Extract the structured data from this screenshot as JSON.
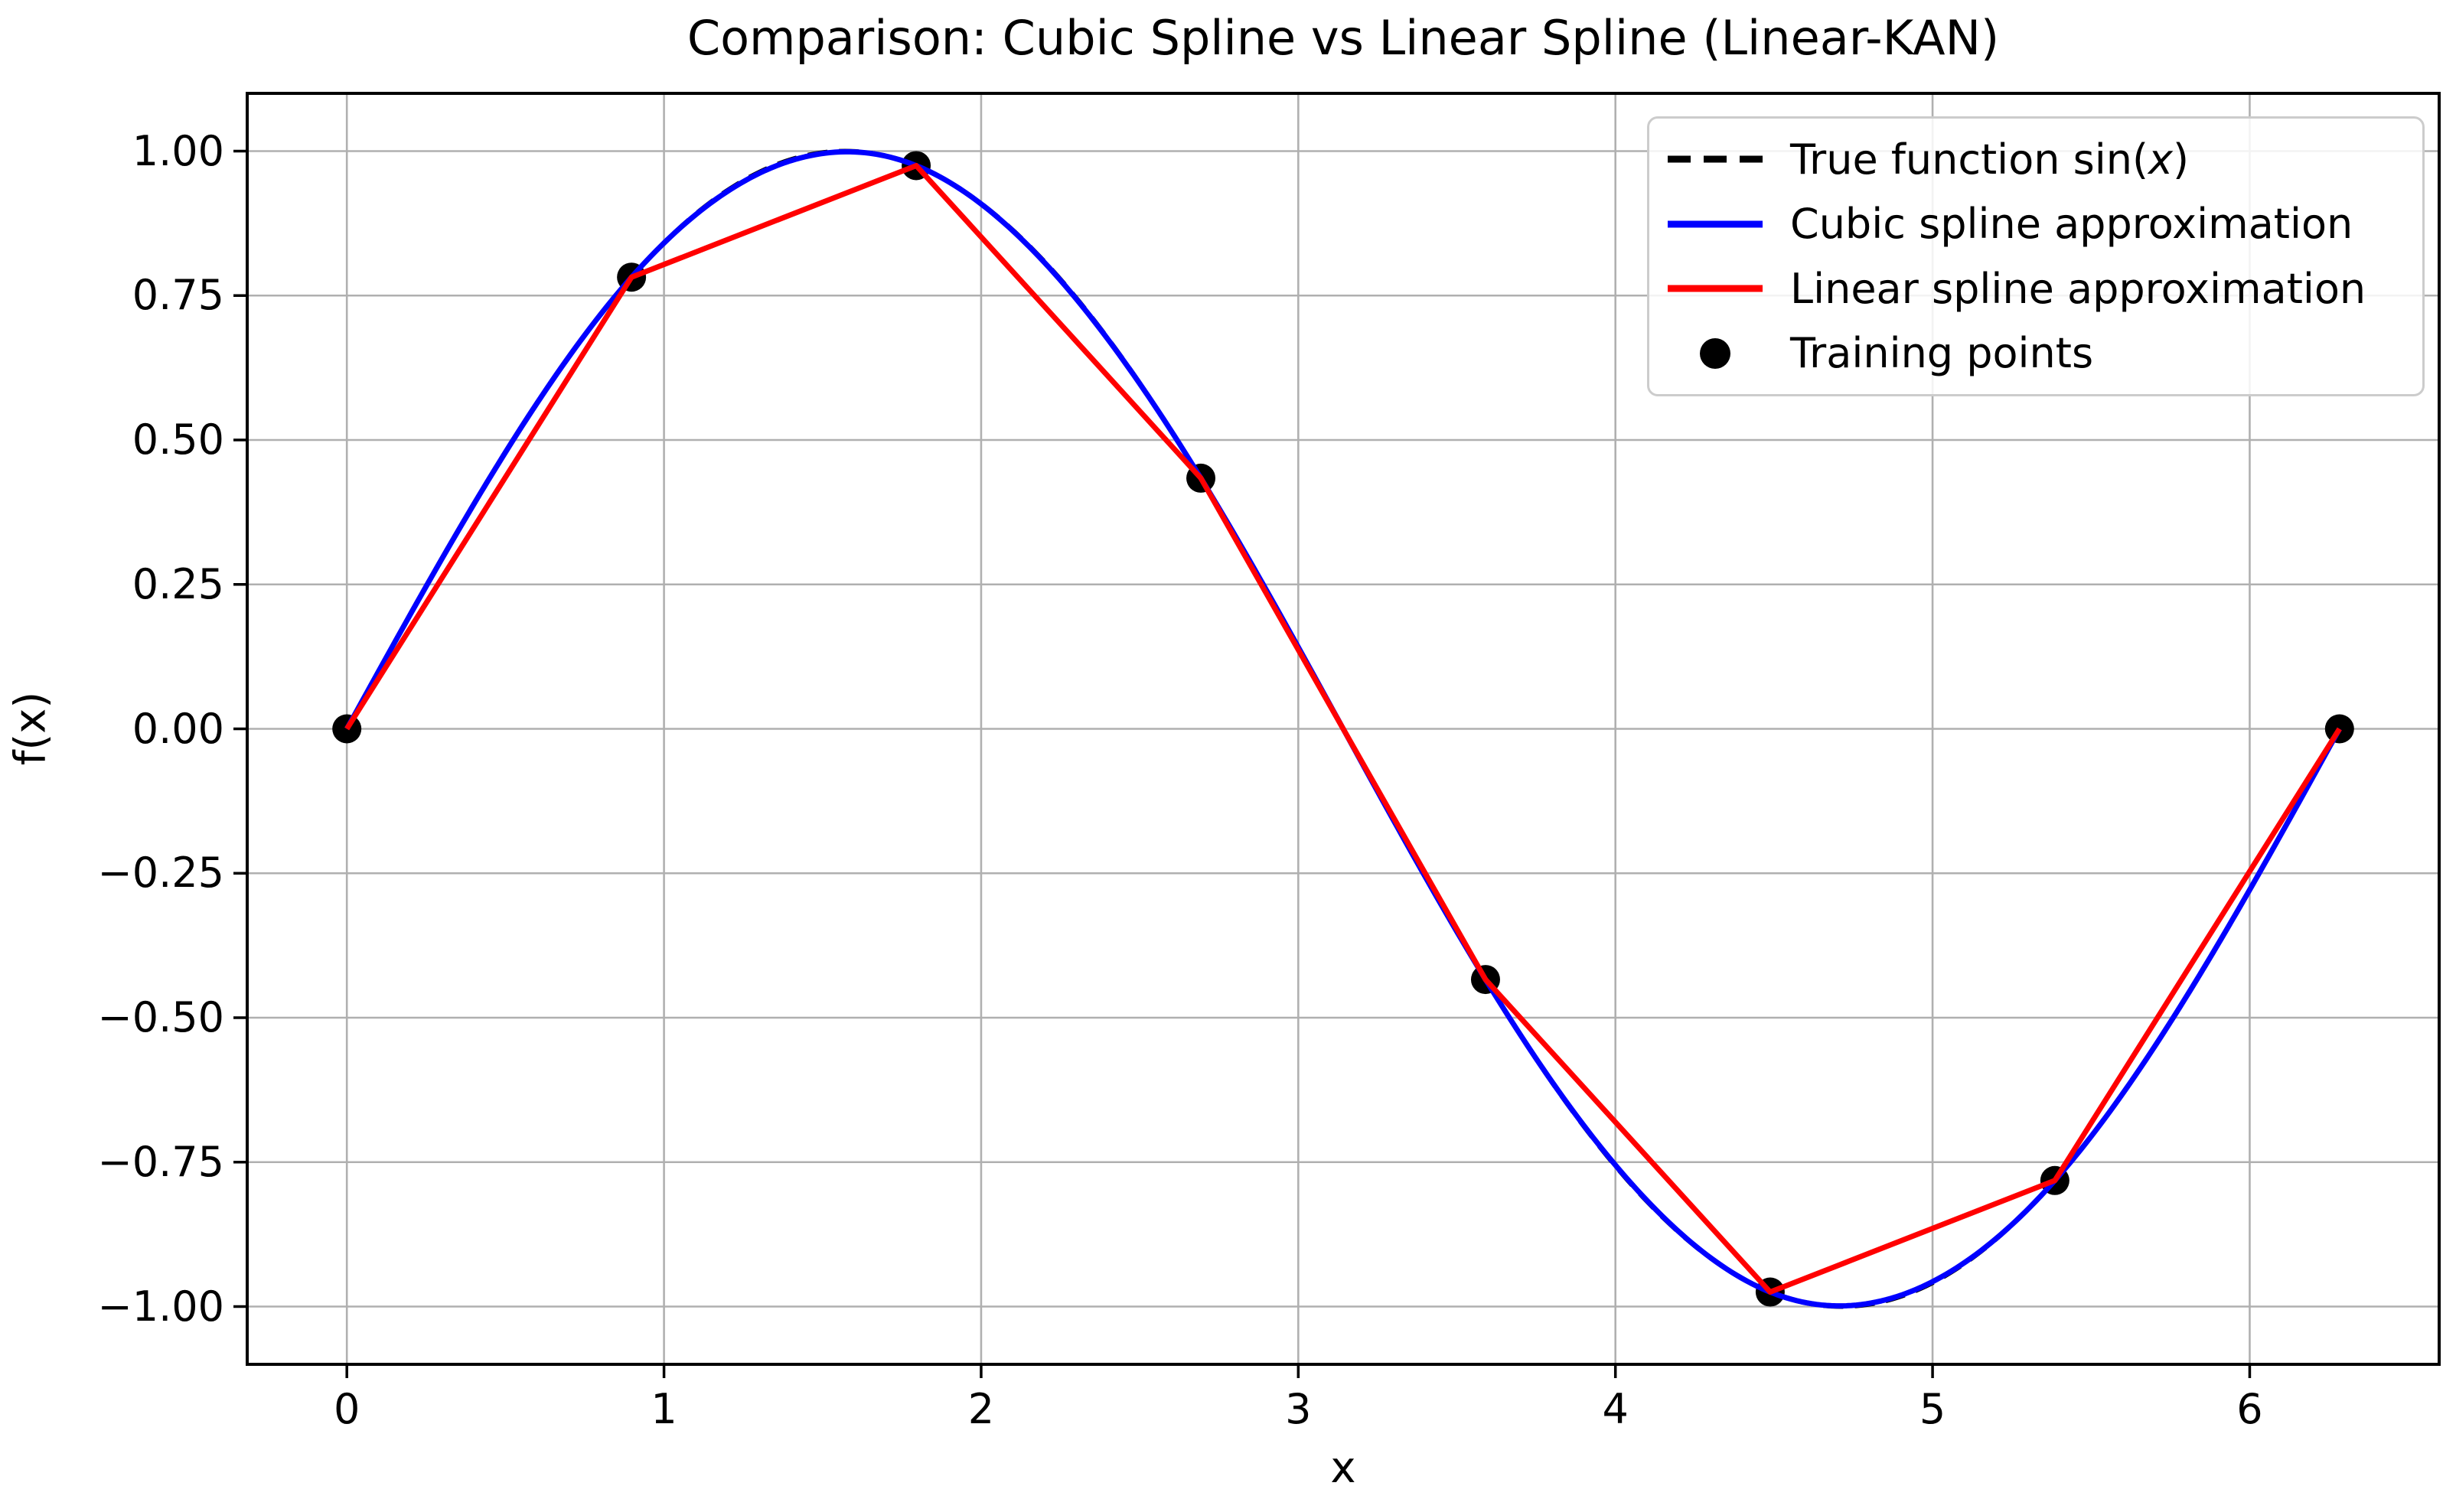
{
  "figure": {
    "title": "Comparison: Cubic Spline vs Linear Spline (Linear-KAN)",
    "background_color": "#ffffff"
  },
  "chart_data": {
    "type": "line",
    "title": "Comparison: Cubic Spline vs Linear Spline (Linear-KAN)",
    "xlabel": "x",
    "ylabel": "f(x)",
    "xlim": [
      -0.3142,
      6.5974
    ],
    "ylim": [
      -1.1,
      1.1
    ],
    "x_curve_range": [
      0,
      6.2832
    ],
    "grid": true,
    "grid_color": "#b0b0b0",
    "spine_color": "#000000",
    "x_ticks": {
      "values": [
        0,
        1,
        2,
        3,
        4,
        5,
        6
      ],
      "labels": [
        "0",
        "1",
        "2",
        "3",
        "4",
        "5",
        "6"
      ]
    },
    "y_ticks": {
      "values": [
        1.0,
        0.75,
        0.5,
        0.25,
        0.0,
        -0.25,
        -0.5,
        -0.75,
        -1.0
      ],
      "labels": [
        "1.00",
        "0.75",
        "0.50",
        "0.25",
        "0.00",
        "−0.25",
        "−0.50",
        "−0.75",
        "−1.00"
      ]
    },
    "series": [
      {
        "name": "True function sin(x)",
        "kind": "function-sin",
        "color": "#000000",
        "style": "dashed",
        "linewidth": 6
      },
      {
        "name": "Cubic spline approximation",
        "kind": "cubic-spline",
        "color": "#0000ff",
        "style": "solid",
        "linewidth": 7
      },
      {
        "name": "Linear spline approximation",
        "kind": "linear-spline",
        "color": "#ff0000",
        "style": "solid",
        "linewidth": 7
      }
    ],
    "training_points": {
      "name": "Training points",
      "color": "#000000",
      "marker_radius": 19,
      "x": [
        0.0,
        0.8976,
        1.7952,
        2.6928,
        3.5904,
        4.488,
        5.3856,
        6.2832
      ],
      "y": [
        0.0,
        0.7818,
        0.9749,
        0.4339,
        -0.4339,
        -0.9749,
        -0.7818,
        0.0
      ]
    },
    "legend": {
      "position": "upper right",
      "items": [
        {
          "label": "True function sin(x)",
          "glyph": "dashed-line",
          "color": "#000000"
        },
        {
          "label": "Cubic spline approximation",
          "glyph": "line",
          "color": "#0000ff"
        },
        {
          "label": "Linear spline approximation",
          "glyph": "line",
          "color": "#ff0000"
        },
        {
          "label": "Training points",
          "glyph": "dot",
          "color": "#000000"
        }
      ]
    }
  }
}
